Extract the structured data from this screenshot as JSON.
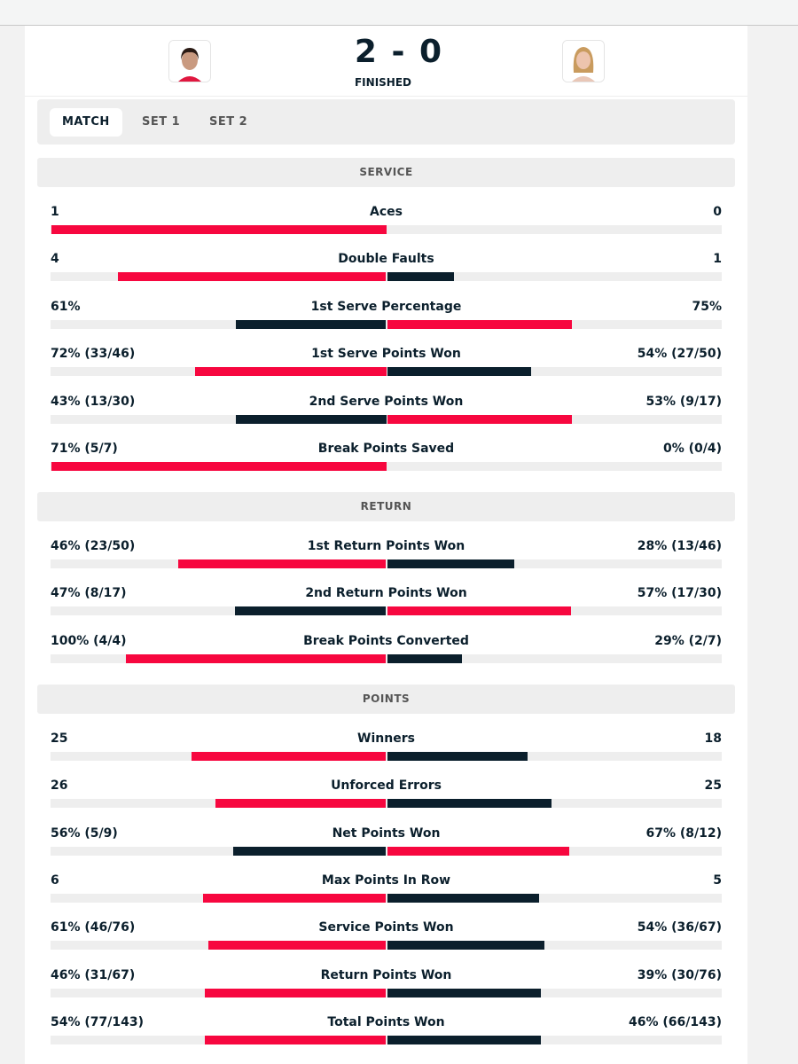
{
  "match": {
    "score": {
      "home": 2,
      "away": 0
    },
    "status": "FINISHED",
    "tabs": [
      "MATCH",
      "SET 1",
      "SET 2"
    ],
    "active_tab": 0,
    "leader_color": "#f7073f",
    "trailer_color": "#0b1f2c",
    "sections": [
      {
        "title": "SERVICE",
        "rows": [
          {
            "name": "Aces",
            "home": 1,
            "away": 0
          },
          {
            "name": "Double Faults",
            "home": 4,
            "away": 1
          },
          {
            "name": "1st Serve Percentage",
            "home": 61,
            "home_label": "61%",
            "away": 75,
            "away_label": "75%"
          },
          {
            "name": "1st Serve Points Won",
            "home": 72,
            "home_label": "72% (33/46)",
            "away": 54,
            "away_label": "54% (27/50)"
          },
          {
            "name": "2nd Serve Points Won",
            "home": 43,
            "home_label": "43% (13/30)",
            "away": 53,
            "away_label": "53% (9/17)"
          },
          {
            "name": "Break Points Saved",
            "home": 71,
            "home_label": "71% (5/7)",
            "away": 0,
            "away_label": "0% (0/4)"
          }
        ]
      },
      {
        "title": "RETURN",
        "rows": [
          {
            "name": "1st Return Points Won",
            "home": 46,
            "home_label": "46% (23/50)",
            "away": 28,
            "away_label": "28% (13/46)"
          },
          {
            "name": "2nd Return Points Won",
            "home": 47,
            "home_label": "47% (8/17)",
            "away": 57,
            "away_label": "57% (17/30)"
          },
          {
            "name": "Break Points Converted",
            "home": 100,
            "home_label": "100% (4/4)",
            "away": 29,
            "away_label": "29% (2/7)"
          }
        ]
      },
      {
        "title": "POINTS",
        "rows": [
          {
            "name": "Winners",
            "home": 25,
            "away": 18
          },
          {
            "name": "Unforced Errors",
            "home": 26,
            "away": 25
          },
          {
            "name": "Net Points Won",
            "home": 56,
            "home_label": "56% (5/9)",
            "away": 67,
            "away_label": "67% (8/12)"
          },
          {
            "name": "Max Points In Row",
            "home": 6,
            "away": 5
          },
          {
            "name": "Service Points Won",
            "home": 61,
            "home_label": "61% (46/76)",
            "away": 54,
            "away_label": "54% (36/67)"
          },
          {
            "name": "Return Points Won",
            "home": 46,
            "home_label": "46% (31/67)",
            "away": 39,
            "away_label": "39% (30/76)"
          },
          {
            "name": "Total Points Won",
            "home": 54,
            "home_label": "54% (77/143)",
            "away": 46,
            "away_label": "46% (66/143)"
          }
        ]
      }
    ]
  }
}
